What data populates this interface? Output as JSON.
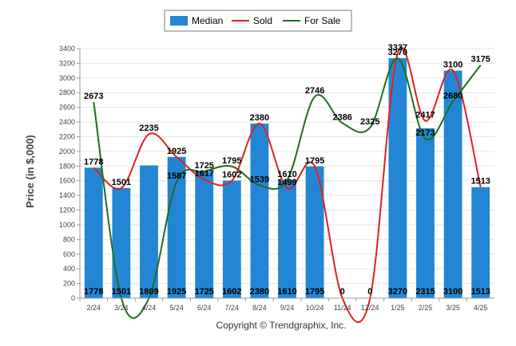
{
  "chart_data": {
    "type": "bar",
    "ylabel": "Price (in $,000)",
    "ylim": [
      0,
      3400
    ],
    "ytick_step": 200,
    "grid": true,
    "legend_position": "top-center",
    "categories": [
      "2/24",
      "3/24",
      "4/24",
      "5/24",
      "6/24",
      "7/24",
      "8/24",
      "9/24",
      "10/24",
      "11/24",
      "12/24",
      "1/25",
      "2/25",
      "3/25",
      "4/25"
    ],
    "series": [
      {
        "name": "Median",
        "kind": "bar",
        "color": "#2386d4",
        "values": [
          1778,
          1501,
          1809,
          1925,
          1725,
          1602,
          2380,
          1610,
          1795,
          0,
          0,
          3270,
          2315,
          3100,
          1513
        ],
        "labels": [
          "1778",
          "1501",
          "1809",
          "1925",
          "1725",
          "1602",
          "2380",
          "1610",
          "1795",
          "0",
          "0",
          "3270",
          "2315",
          "3100",
          "1513"
        ]
      },
      {
        "name": "Sold",
        "kind": "line",
        "color": "#e02020",
        "values": [
          1778,
          1501,
          2235,
          1925,
          1617,
          1602,
          2380,
          1499,
          1795,
          0,
          0,
          3337,
          2417,
          3100,
          1513
        ],
        "labels": [
          "1778",
          "1501",
          "2235",
          "1925",
          "1617",
          "1602",
          "2380",
          "1499",
          "1795",
          "",
          "",
          "3337",
          "2417",
          "3100",
          "1513"
        ]
      },
      {
        "name": "For Sale",
        "kind": "line",
        "color": "#1e6e1e",
        "values": [
          2673,
          0,
          0,
          1587,
          1725,
          1795,
          1539,
          1610,
          2746,
          2386,
          2325,
          3270,
          2173,
          2680,
          3175
        ],
        "labels": [
          "2673",
          "",
          "",
          "1587",
          "1725",
          "1795",
          "1539",
          "1610",
          "2746",
          "2386",
          "2325",
          "3270",
          "2173",
          "2680",
          "3175"
        ]
      }
    ]
  },
  "copyright": "Copyright © Trendgraphix, Inc."
}
